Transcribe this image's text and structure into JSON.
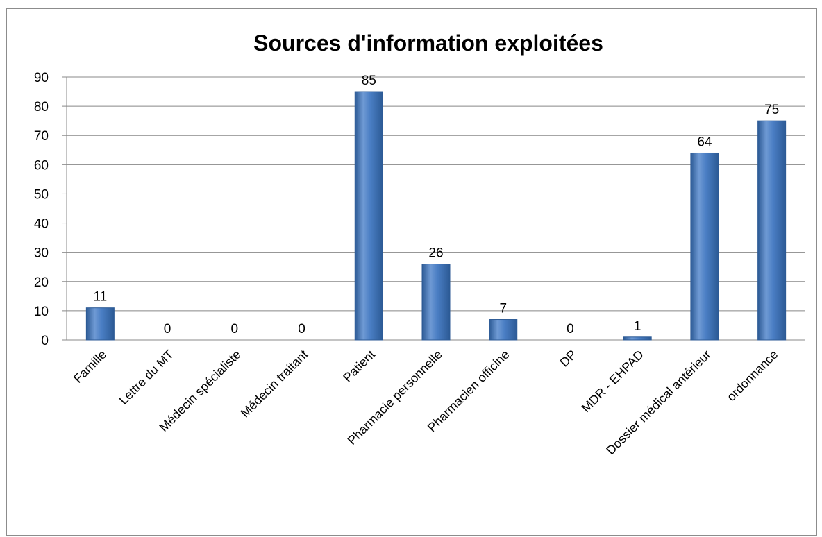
{
  "chart_data": {
    "type": "bar",
    "title": "Sources d'information exploitées",
    "xlabel": "",
    "ylabel": "",
    "categories": [
      "Famille",
      "Lettre du MT",
      "Médecin spécialiste",
      "Médecin traitant",
      "Patient",
      "Pharmacie personnelle",
      "Pharmacien officine",
      "DP",
      "MDR - EHPAD",
      "Dossier médical antérieur",
      "ordonnance"
    ],
    "values": [
      11,
      0,
      0,
      0,
      85,
      26,
      7,
      0,
      1,
      64,
      75
    ],
    "ylim": [
      0,
      90
    ],
    "yticks": [
      0,
      10,
      20,
      30,
      40,
      50,
      60,
      70,
      80,
      90
    ],
    "grid": true,
    "legend": "none",
    "data_labels": true,
    "colors": {
      "bar": "#4a7ec4",
      "bar_dark": "#2c5a95",
      "bar_light": "#6f9ad4",
      "grid": "#888888"
    }
  }
}
